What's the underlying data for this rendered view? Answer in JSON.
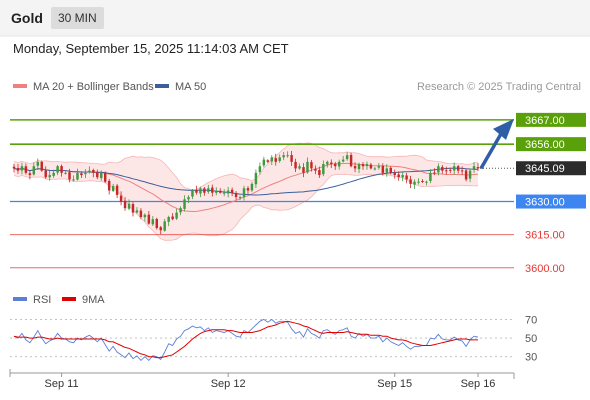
{
  "header": {
    "title": "Gold",
    "timeframe": "30 MIN"
  },
  "datetime": "Monday, September 15, 2025 11:14:03 AM CET",
  "chart_data": {
    "type": "candlestick",
    "title": "Gold",
    "attribution": "Research © 2025 Trading Central",
    "legend": [
      {
        "name": "MA 20 + Bollinger Bands",
        "color": "#f08080"
      },
      {
        "name": "MA 50",
        "color": "#3a5f9a"
      }
    ],
    "price_axis": {
      "ylim": [
        3594,
        3676
      ]
    },
    "current_price": {
      "label": "3645.09",
      "value": 3645.09
    },
    "levels": [
      {
        "label": "3667.00",
        "value": 3667.0,
        "kind": "resistance",
        "color": "#5aa00a"
      },
      {
        "label": "3656.00",
        "value": 3656.0,
        "kind": "resistance",
        "color": "#5aa00a"
      },
      {
        "label": "3630.00",
        "value": 3630.0,
        "kind": "pivot",
        "color": "#3d85f0"
      },
      {
        "label": "3615.00",
        "value": 3615.0,
        "kind": "support",
        "color": "#e53935"
      },
      {
        "label": "3600.00",
        "value": 3600.0,
        "kind": "support",
        "color": "#e53935"
      }
    ],
    "forecast_arrow": {
      "from": 3645.0,
      "to": 3667.0,
      "color": "#2f5ea8"
    },
    "x_labels": [
      "Sep 11",
      "Sep 12",
      "Sep 15",
      "Sep 16"
    ],
    "x_label_bars": [
      12,
      54,
      96,
      117
    ],
    "bar_count": 118,
    "closes": [
      3645,
      3644,
      3646,
      3643,
      3642,
      3646,
      3648,
      3644,
      3641,
      3642,
      3643,
      3646,
      3643,
      3643,
      3640,
      3640,
      3643,
      3642,
      3643,
      3644,
      3643,
      3641,
      3643,
      3639,
      3635,
      3637,
      3633,
      3630,
      3627,
      3629,
      3625,
      3626,
      3623,
      3624,
      3620,
      3622,
      3618,
      3617,
      3621,
      3623,
      3622,
      3625,
      3627,
      3631,
      3632,
      3635,
      3634,
      3636,
      3634,
      3636,
      3634,
      3635,
      3634,
      3634,
      3635,
      3634,
      3632,
      3632,
      3636,
      3635,
      3638,
      3643,
      3646,
      3649,
      3648,
      3650,
      3648,
      3650,
      3651,
      3651,
      3648,
      3645,
      3646,
      3643,
      3648,
      3645,
      3644,
      3642,
      3647,
      3648,
      3647,
      3646,
      3648,
      3649,
      3651,
      3646,
      3645,
      3647,
      3646,
      3647,
      3645,
      3645,
      3646,
      3643,
      3645,
      3643,
      3642,
      3641,
      3642,
      3640,
      3638,
      3639,
      3639,
      3639,
      3639,
      3643,
      3643,
      3646,
      3644,
      3644,
      3644,
      3646,
      3644,
      3644,
      3640,
      3644,
      3646,
      3645
    ],
    "rsi_indicator": {
      "legend": [
        {
          "name": "RSI",
          "color": "#5b7fd8"
        },
        {
          "name": "9MA",
          "color": "#e00000"
        }
      ],
      "ylim": [
        20,
        78
      ],
      "ticks": [
        {
          "label": "70",
          "value": 70
        },
        {
          "label": "50",
          "value": 50
        },
        {
          "label": "30",
          "value": 30
        }
      ],
      "rsi": [
        52,
        50,
        55,
        48,
        45,
        51,
        58,
        50,
        44,
        47,
        49,
        55,
        50,
        49,
        46,
        45,
        50,
        48,
        51,
        53,
        50,
        46,
        50,
        43,
        36,
        41,
        35,
        32,
        29,
        34,
        28,
        31,
        26,
        30,
        26,
        31,
        30,
        27,
        35,
        44,
        42,
        49,
        52,
        58,
        60,
        63,
        61,
        62,
        58,
        61,
        56,
        58,
        57,
        56,
        58,
        55,
        52,
        51,
        58,
        56,
        60,
        64,
        68,
        70,
        67,
        70,
        66,
        68,
        68,
        67,
        60,
        55,
        57,
        51,
        60,
        55,
        53,
        50,
        58,
        59,
        56,
        54,
        58,
        59,
        61,
        52,
        50,
        55,
        52,
        54,
        50,
        50,
        52,
        46,
        50,
        46,
        44,
        42,
        45,
        41,
        38,
        41,
        41,
        42,
        42,
        50,
        49,
        54,
        49,
        48,
        48,
        51,
        48,
        47,
        41,
        48,
        52,
        51
      ],
      "ma9": [
        52,
        51,
        51,
        51,
        50,
        50,
        51,
        51,
        50,
        49,
        49,
        50,
        49,
        49,
        49,
        49,
        49,
        49,
        49,
        49,
        49,
        49,
        49,
        48,
        46,
        46,
        44,
        42,
        40,
        39,
        37,
        35,
        33,
        32,
        30,
        30,
        29,
        29,
        30,
        31,
        32,
        35,
        38,
        41,
        45,
        49,
        52,
        55,
        57,
        58,
        59,
        59,
        59,
        59,
        58,
        58,
        57,
        56,
        56,
        56,
        56,
        57,
        58,
        60,
        62,
        63,
        64,
        66,
        67,
        68,
        67,
        66,
        65,
        63,
        62,
        60,
        58,
        56,
        55,
        56,
        56,
        56,
        56,
        56,
        57,
        56,
        55,
        54,
        54,
        54,
        53,
        53,
        53,
        52,
        52,
        50,
        49,
        48,
        48,
        47,
        45,
        44,
        43,
        42,
        42,
        42,
        43,
        44,
        45,
        46,
        47,
        48,
        49,
        49,
        49,
        48,
        48,
        48
      ]
    }
  }
}
